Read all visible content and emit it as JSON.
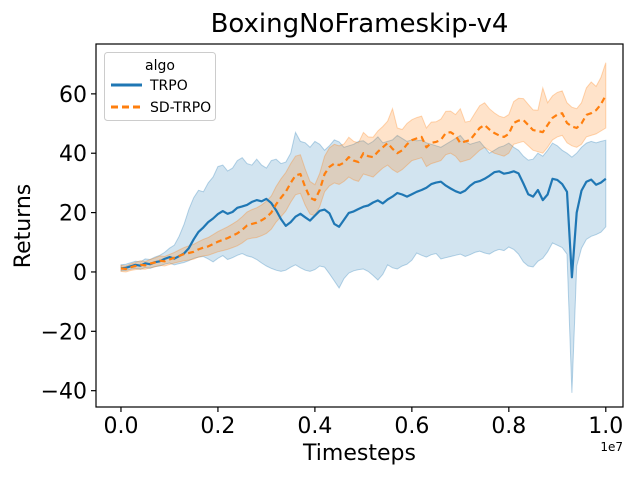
{
  "chart_data": {
    "type": "line",
    "title": "BoxingNoFrameskip-v4",
    "xlabel": "Timesteps",
    "ylabel": "Returns",
    "x_offset_label": "1e7",
    "x_unit_multiplier": 10000000,
    "grid": false,
    "x_tick_labels": [
      "0.0",
      "0.2",
      "0.4",
      "0.6",
      "0.8",
      "1.0"
    ],
    "x_tick_values": [
      0,
      0.2,
      0.4,
      0.6,
      0.8,
      1.0
    ],
    "y_tick_labels": [
      "−40",
      "−20",
      "0",
      "20",
      "40",
      "60"
    ],
    "y_tick_values": [
      -40,
      -20,
      0,
      20,
      40,
      60
    ],
    "xlim": [
      -0.0515,
      1.0355
    ],
    "ylim": [
      -45.5,
      76.8
    ],
    "legend": {
      "title": "algo",
      "position": "upper left"
    },
    "x_start": 0,
    "x_step": 0.01,
    "series": [
      {
        "name": "TRPO",
        "color": "#1f77b4",
        "dash": "solid",
        "band_alpha": 0.2,
        "mean": [
          1.2,
          1.4,
          1.9,
          2.4,
          2.1,
          2.9,
          2.6,
          3.3,
          3.6,
          4.4,
          5.0,
          4.5,
          5.3,
          6.2,
          8.0,
          11.0,
          13.5,
          15.0,
          16.8,
          18.0,
          19.5,
          20.5,
          19.6,
          20.2,
          21.6,
          22.1,
          22.6,
          23.6,
          24.2,
          23.8,
          24.6,
          23.2,
          20.8,
          17.8,
          15.5,
          16.8,
          18.6,
          19.6,
          18.4,
          17.3,
          19.0,
          20.6,
          21.0,
          19.8,
          16.2,
          15.2,
          17.6,
          19.9,
          20.4,
          21.2,
          22.0,
          22.4,
          23.4,
          24.1,
          23.1,
          24.4,
          25.4,
          26.6,
          26.1,
          25.4,
          26.2,
          27.0,
          27.6,
          28.4,
          29.6,
          30.1,
          30.4,
          29.1,
          28.1,
          27.2,
          26.6,
          27.4,
          29.0,
          30.2,
          30.6,
          31.4,
          32.4,
          33.6,
          33.9,
          33.1,
          33.4,
          33.9,
          33.2,
          29.8,
          26.2,
          25.4,
          27.6,
          24.2,
          26.1,
          31.4,
          31.0,
          29.6,
          27.0,
          -1.8,
          20.0,
          27.4,
          30.4,
          31.1,
          29.4,
          30.1,
          31.4
        ],
        "low": [
          0.4,
          0.5,
          0.9,
          1.2,
          0.9,
          1.5,
          1.2,
          1.8,
          2.0,
          2.6,
          3.0,
          2.4,
          2.8,
          3.2,
          3.8,
          4.6,
          5.0,
          5.2,
          4.4,
          3.4,
          4.6,
          5.5,
          4.2,
          4.8,
          5.6,
          6.2,
          5.4,
          5.0,
          4.2,
          3.0,
          2.0,
          1.2,
          0.6,
          0.2,
          0.6,
          1.6,
          2.4,
          1.4,
          0.6,
          0.2,
          0.8,
          2.0,
          1.6,
          -0.6,
          -3.0,
          -5.4,
          -2.2,
          -0.4,
          0.4,
          0.8,
          1.0,
          0.2,
          -1.2,
          -2.7,
          -0.8,
          2.4,
          1.4,
          1.0,
          2.0,
          2.6,
          4.0,
          6.4,
          5.6,
          5.0,
          5.8,
          6.2,
          4.4,
          4.8,
          5.2,
          5.6,
          6.0,
          5.2,
          5.8,
          6.6,
          7.0,
          6.4,
          6.0,
          7.0,
          7.6,
          7.2,
          8.4,
          7.6,
          6.0,
          3.4,
          2.0,
          1.7,
          3.6,
          4.6,
          6.8,
          9.8,
          9.0,
          8.2,
          6.0,
          -40.7,
          2.0,
          8.0,
          11.0,
          12.0,
          12.6,
          13.4,
          15.2
        ],
        "high": [
          2.4,
          2.6,
          3.1,
          3.6,
          3.4,
          4.4,
          4.2,
          5.0,
          5.6,
          6.6,
          8.0,
          9.0,
          12.0,
          16.0,
          21.0,
          25.0,
          27.5,
          27.0,
          30.0,
          32.0,
          35.5,
          36.0,
          34.0,
          35.0,
          37.5,
          38.5,
          36.5,
          36.0,
          38.0,
          36.0,
          35.0,
          37.5,
          38.0,
          36.5,
          37.0,
          40.0,
          47.0,
          44.0,
          43.5,
          42.0,
          44.0,
          43.0,
          41.0,
          42.5,
          44.5,
          43.8,
          42.0,
          42.5,
          43.0,
          44.0,
          44.2,
          43.0,
          44.0,
          45.5,
          43.5,
          44.0,
          44.5,
          46.0,
          45.0,
          44.0,
          44.5,
          44.2,
          44.4,
          43.5,
          43.0,
          42.5,
          42.0,
          43.0,
          44.0,
          45.0,
          46.0,
          44.0,
          43.0,
          43.5,
          44.0,
          42.0,
          40.0,
          41.0,
          42.0,
          42.5,
          43.4,
          42.0,
          41.0,
          39.0,
          37.7,
          38.0,
          40.0,
          39.0,
          41.0,
          43.4,
          42.5,
          41.0,
          40.0,
          38.7,
          40.0,
          42.0,
          43.4,
          44.0,
          43.5,
          44.0,
          44.4
        ]
      },
      {
        "name": "SD-TRPO",
        "color": "#ff7f0e",
        "dash": "dashed",
        "band_alpha": 0.22,
        "mean": [
          1.2,
          1.0,
          1.6,
          2.0,
          2.4,
          2.2,
          2.8,
          3.2,
          3.8,
          3.6,
          4.2,
          4.8,
          5.4,
          6.0,
          6.4,
          6.8,
          7.6,
          8.2,
          8.6,
          9.4,
          10.2,
          10.8,
          11.4,
          12.2,
          13.0,
          14.2,
          15.6,
          16.2,
          16.6,
          17.4,
          18.4,
          20.0,
          22.8,
          25.0,
          27.0,
          30.0,
          32.5,
          33.0,
          28.6,
          25.0,
          24.2,
          27.6,
          33.0,
          35.4,
          36.5,
          36.0,
          36.8,
          38.7,
          37.5,
          37.0,
          40.0,
          39.0,
          38.7,
          40.5,
          42.0,
          43.4,
          41.5,
          40.0,
          41.0,
          43.0,
          44.4,
          45.0,
          45.5,
          42.0,
          43.5,
          43.8,
          44.5,
          46.8,
          47.1,
          46.0,
          43.4,
          44.0,
          44.4,
          46.5,
          48.5,
          49.5,
          48.0,
          46.8,
          46.0,
          45.5,
          46.5,
          50.2,
          51.0,
          51.2,
          49.5,
          47.8,
          47.5,
          47.1,
          49.5,
          51.9,
          53.0,
          53.5,
          50.2,
          49.0,
          48.5,
          50.0,
          52.9,
          53.5,
          54.5,
          56.5,
          59.5
        ],
        "low": [
          0.2,
          0.0,
          0.5,
          0.8,
          1.0,
          0.9,
          1.4,
          1.7,
          2.2,
          2.0,
          2.5,
          3.0,
          3.4,
          3.8,
          4.0,
          4.3,
          5.0,
          5.4,
          5.6,
          6.2,
          6.8,
          7.2,
          7.6,
          8.2,
          8.8,
          9.8,
          11.0,
          11.4,
          11.6,
          12.2,
          13.0,
          14.4,
          16.8,
          18.6,
          20.5,
          23.5,
          26.0,
          26.5,
          22.5,
          19.5,
          19.0,
          22.0,
          27.0,
          29.0,
          30.0,
          29.5,
          30.5,
          32.0,
          31.0,
          30.5,
          33.0,
          32.5,
          32.0,
          33.5,
          35.0,
          36.0,
          34.5,
          33.5,
          34.5,
          36.0,
          37.5,
          38.0,
          38.5,
          35.5,
          36.5,
          37.0,
          37.5,
          39.5,
          40.0,
          39.0,
          37.0,
          37.5,
          38.0,
          39.5,
          41.0,
          42.0,
          41.0,
          40.0,
          39.5,
          39.0,
          40.0,
          43.0,
          43.5,
          44.0,
          42.5,
          41.0,
          40.5,
          40.0,
          42.0,
          44.5,
          45.5,
          46.0,
          43.5,
          42.5,
          42.0,
          43.0,
          45.5,
          46.0,
          46.5,
          47.5,
          48.5
        ],
        "high": [
          2.2,
          2.0,
          2.7,
          3.2,
          3.8,
          3.5,
          4.2,
          4.7,
          5.4,
          5.2,
          5.9,
          6.6,
          7.4,
          8.2,
          8.8,
          9.3,
          10.2,
          11.0,
          11.6,
          12.6,
          13.6,
          14.4,
          15.2,
          16.2,
          17.2,
          18.6,
          20.2,
          21.0,
          21.6,
          22.6,
          23.8,
          25.6,
          28.8,
          31.4,
          33.5,
          36.5,
          39.0,
          39.5,
          34.7,
          30.5,
          29.4,
          33.2,
          39.0,
          41.8,
          43.0,
          42.5,
          43.1,
          45.4,
          44.0,
          43.5,
          47.0,
          45.5,
          45.4,
          47.5,
          49.0,
          50.8,
          55.0,
          48.5,
          48.0,
          50.0,
          51.3,
          52.0,
          52.5,
          48.5,
          50.5,
          50.6,
          51.5,
          54.1,
          54.2,
          53.0,
          55.0,
          50.5,
          50.8,
          53.5,
          56.0,
          57.0,
          55.0,
          53.6,
          52.5,
          52.0,
          53.0,
          57.4,
          58.5,
          58.4,
          56.5,
          54.6,
          54.5,
          62.0,
          57.0,
          59.3,
          60.5,
          61.0,
          57.0,
          55.5,
          55.0,
          57.0,
          62.0,
          64.0,
          62.5,
          65.5,
          70.5
        ]
      }
    ]
  }
}
